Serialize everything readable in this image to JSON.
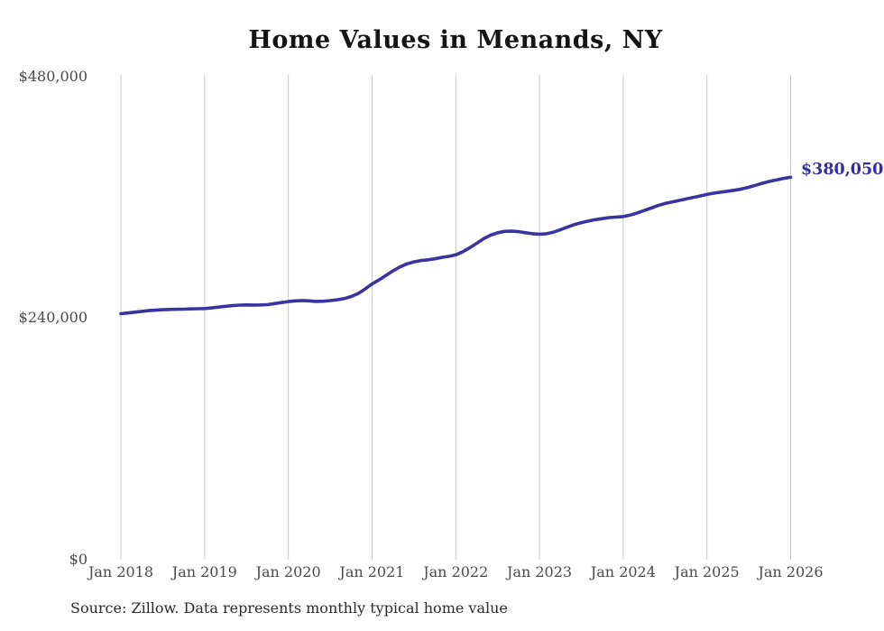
{
  "title": "Home Values in Menands, NY",
  "source_note": "Source: Zillow. Data represents monthly typical home value",
  "end_label": "$380,050",
  "colors": {
    "line": "#3a34a2",
    "end_label": "#332f9e",
    "grid": "#cbcbcb",
    "title": "#141414",
    "ticks": "#4a4a4a",
    "source": "#2b2b2b",
    "background": "#ffffff"
  },
  "chart_data": {
    "type": "line",
    "title": "Home Values in Menands, NY",
    "series_name": "Monthly typical home value",
    "interval": "monthly",
    "x_start": "Jan 2018",
    "x_end": "Jan 2026",
    "x_tick_labels": [
      "Jan 2018",
      "Jan 2019",
      "Jan 2020",
      "Jan 2021",
      "Jan 2022",
      "Jan 2023",
      "Jan 2024",
      "Jan 2025",
      "Jan 2026"
    ],
    "y_tick_labels": [
      "$0",
      "$240,000",
      "$480,000"
    ],
    "y_ticks": [
      0,
      240000,
      480000
    ],
    "ylim": [
      0,
      480000
    ],
    "grid": "vertical-only",
    "legend": "none",
    "final_value": 380050,
    "values": [
      244500,
      245200,
      246000,
      246800,
      247500,
      248000,
      248400,
      248700,
      248900,
      249000,
      249200,
      249400,
      249600,
      250200,
      251000,
      251800,
      252500,
      253000,
      253200,
      253100,
      253200,
      253500,
      254500,
      255500,
      256500,
      257200,
      257600,
      257200,
      256700,
      256900,
      257500,
      258300,
      259500,
      261500,
      264500,
      269000,
      274000,
      278000,
      282500,
      287000,
      291000,
      294000,
      296000,
      297300,
      298000,
      299000,
      300500,
      301500,
      303000,
      306000,
      310000,
      314500,
      319000,
      322500,
      325000,
      326300,
      326500,
      326000,
      325000,
      324000,
      323500,
      324000,
      325500,
      328000,
      330500,
      333000,
      335000,
      336500,
      338000,
      339000,
      340000,
      340500,
      341000,
      342500,
      344500,
      347000,
      349500,
      352000,
      354000,
      355500,
      357000,
      358500,
      360000,
      361500,
      363000,
      364300,
      365300,
      366200,
      367200,
      368500,
      370200,
      372200,
      374200,
      376000,
      377500,
      379000,
      380050
    ]
  }
}
